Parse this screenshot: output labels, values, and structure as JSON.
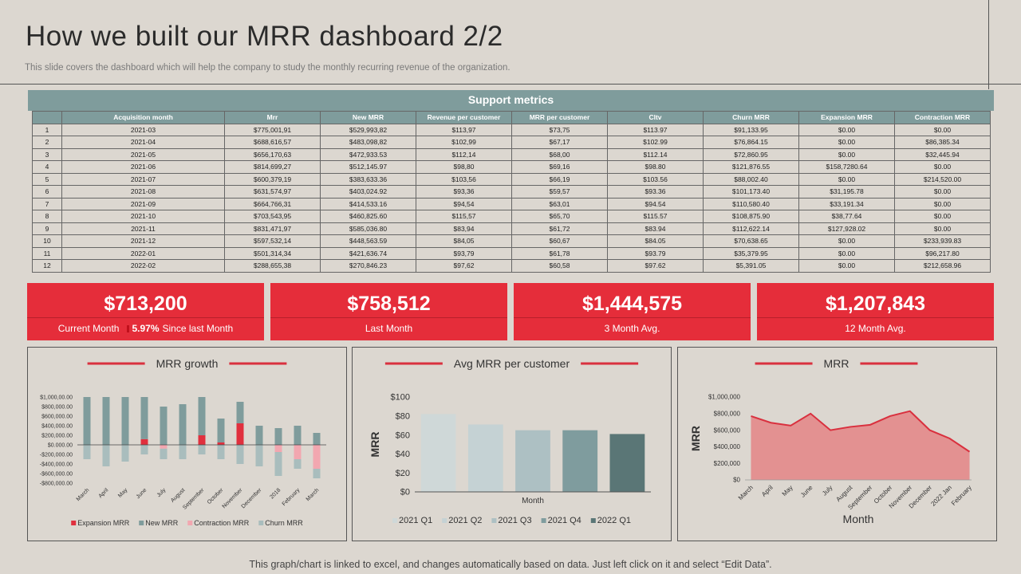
{
  "header": {
    "title": "How we built our MRR dashboard 2/2",
    "subtitle": "This slide covers the dashboard which will help the company to study the monthly recurring revenue of the organization."
  },
  "table": {
    "title": "Support metrics",
    "columns": [
      "Acquisition month",
      "Mrr",
      "New MRR",
      "Revenue per customer",
      "MRR per customer",
      "Cltv",
      "Churn MRR",
      "Expansion MRR",
      "Contraction MRR"
    ],
    "rows": [
      [
        "1",
        "2021-03",
        "$775,001,91",
        "$529,993,82",
        "$113,97",
        "$73,75",
        "$113.97",
        "$91,133.95",
        "$0.00",
        "$0.00"
      ],
      [
        "2",
        "2021-04",
        "$688,616,57",
        "$483,098,82",
        "$102,99",
        "$67,17",
        "$102.99",
        "$76,864.15",
        "$0.00",
        "$86,385.34"
      ],
      [
        "3",
        "2021-05",
        "$656,170,63",
        "$472,933.53",
        "$112,14",
        "$68,00",
        "$112.14",
        "$72,860.95",
        "$0.00",
        "$32,445.94"
      ],
      [
        "4",
        "2021-06",
        "$814,699,27",
        "$512,145.97",
        "$98,80",
        "$69,16",
        "$98.80",
        "$121,876.55",
        "$158,7280.64",
        "$0.00"
      ],
      [
        "5",
        "2021-07",
        "$600,379,19",
        "$383,633.36",
        "$103,56",
        "$66,19",
        "$103.56",
        "$88,002.40",
        "$0.00",
        "$214,520.00"
      ],
      [
        "6",
        "2021-08",
        "$631,574,97",
        "$403,024.92",
        "$93,36",
        "$59,57",
        "$93.36",
        "$101,173.40",
        "$31,195.78",
        "$0.00"
      ],
      [
        "7",
        "2021-09",
        "$664,766,31",
        "$414,533.16",
        "$94,54",
        "$63,01",
        "$94.54",
        "$110,580.40",
        "$33,191.34",
        "$0.00"
      ],
      [
        "8",
        "2021-10",
        "$703,543,95",
        "$460,825.60",
        "$115,57",
        "$65,70",
        "$115.57",
        "$108,875.90",
        "$38,77.64",
        "$0.00"
      ],
      [
        "9",
        "2021-11",
        "$831,471,97",
        "$585,036.80",
        "$83,94",
        "$61,72",
        "$83.94",
        "$112,622.14",
        "$127,928.02",
        "$0.00"
      ],
      [
        "10",
        "2021-12",
        "$597,532,14",
        "$448,563.59",
        "$84,05",
        "$60,67",
        "$84.05",
        "$70,638.65",
        "$0.00",
        "$233,939.83"
      ],
      [
        "11",
        "2022-01",
        "$501,314,34",
        "$421,636.74",
        "$93,79",
        "$61,78",
        "$93.79",
        "$35,379.95",
        "$0.00",
        "$96,217.80"
      ],
      [
        "12",
        "2022-02",
        "$288,655,38",
        "$270,846.23",
        "$97,62",
        "$60,58",
        "$97.62",
        "$5,391.05",
        "$0.00",
        "$212,658.96"
      ]
    ]
  },
  "kpis": [
    {
      "value": "$713,200",
      "label": "Current Month",
      "change": "5.97%",
      "change_label": "Since last Month"
    },
    {
      "value": "$758,512",
      "label": "Last Month"
    },
    {
      "value": "$1,444,575",
      "label": "3 Month Avg."
    },
    {
      "value": "$1,207,843",
      "label": "12 Month Avg."
    }
  ],
  "chart_data": [
    {
      "type": "stacked_bar",
      "title": "MRR growth",
      "categories": [
        "March",
        "April",
        "May",
        "June",
        "July",
        "August",
        "September",
        "October",
        "November",
        "December",
        "2018",
        "February",
        "March"
      ],
      "ylim": [
        -800000,
        1000000
      ],
      "yticks": [
        {
          "value": 1000000,
          "label": "$1,000,00.00"
        },
        {
          "value": 800000,
          "label": "$800,000.00"
        },
        {
          "value": 600000,
          "label": "$600,000.00"
        },
        {
          "value": 400000,
          "label": "$400,000.00"
        },
        {
          "value": 200000,
          "label": "$200,000.00"
        },
        {
          "value": 0,
          "label": "$0.000.00"
        },
        {
          "value": -200000,
          "label": "-$200,000.00"
        },
        {
          "value": -400000,
          "label": "-$400,000.00"
        },
        {
          "value": -600000,
          "label": "-$600,000.00"
        },
        {
          "value": -800000,
          "label": "-$800,000.00"
        }
      ],
      "legend": "bottom",
      "series": [
        {
          "name": "Expansion MRR",
          "color": "#e0303e",
          "values": [
            0,
            0,
            0,
            120000,
            0,
            0,
            200000,
            50000,
            450000,
            0,
            0,
            0,
            0
          ]
        },
        {
          "name": "New MRR",
          "color": "#7f9c9c",
          "values": [
            1000000,
            1000000,
            1000000,
            880000,
            800000,
            850000,
            800000,
            500000,
            450000,
            400000,
            350000,
            400000,
            250000
          ]
        },
        {
          "name": "Contraction MRR",
          "color": "#f2a7b0",
          "values": [
            0,
            0,
            0,
            0,
            -80000,
            0,
            0,
            0,
            0,
            0,
            -150000,
            -300000,
            -500000
          ]
        },
        {
          "name": "Churn MRR",
          "color": "#a9bdbd",
          "values": [
            -300000,
            -450000,
            -350000,
            -200000,
            -220000,
            -300000,
            -200000,
            -300000,
            -400000,
            -450000,
            -500000,
            -200000,
            -200000
          ]
        }
      ]
    },
    {
      "type": "bar",
      "title": "Avg MRR per customer",
      "ylabel": "MRR",
      "xlabel": "Month",
      "legend": "bottom",
      "categories": [
        "2021 Q1",
        "2021 Q2",
        "2021 Q3",
        "2021 Q4",
        "2022 Q1"
      ],
      "values": [
        82,
        71,
        65,
        65,
        61
      ],
      "colors": [
        "#cfd8d8",
        "#c5d2d4",
        "#adc0c3",
        "#7f9c9e",
        "#5a7676"
      ],
      "ylim": [
        0,
        100
      ],
      "yticks": [
        {
          "value": 0,
          "label": "$0"
        },
        {
          "value": 20,
          "label": "$20"
        },
        {
          "value": 40,
          "label": "$40"
        },
        {
          "value": 60,
          "label": "$60"
        },
        {
          "value": 80,
          "label": "$80"
        },
        {
          "value": 100,
          "label": "$100"
        }
      ]
    },
    {
      "type": "area",
      "title": "MRR",
      "ylabel": "MRR",
      "xlabel": "Month",
      "categories": [
        "March",
        "April",
        "May",
        "June",
        "July",
        "August",
        "September",
        "October",
        "November",
        "December",
        "2022 Jan",
        "February"
      ],
      "values": [
        770000,
        690000,
        655000,
        800000,
        600000,
        640000,
        665000,
        770000,
        830000,
        600000,
        500000,
        340000
      ],
      "color": "#e39191",
      "line_color": "#d9303e",
      "ylim": [
        0,
        1000000
      ],
      "yticks": [
        {
          "value": 0,
          "label": "$0"
        },
        {
          "value": 200000,
          "label": "$200,000"
        },
        {
          "value": 400000,
          "label": "$400,000"
        },
        {
          "value": 600000,
          "label": "$600,000"
        },
        {
          "value": 800000,
          "label": "$800,000"
        },
        {
          "value": 1000000,
          "label": "$1,000,000"
        }
      ]
    }
  ],
  "footer": "This graph/chart is linked to excel, and changes automatically based on data. Just left click on it and select “Edit Data”."
}
